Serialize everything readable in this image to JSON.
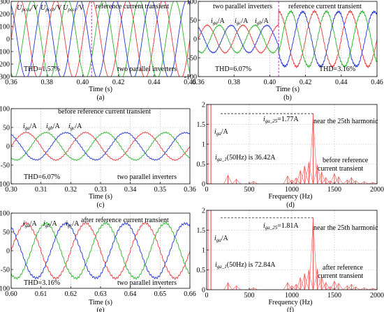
{
  "figure": {
    "panels": [
      {
        "id": "a",
        "caption": "(a)",
        "xlabel": "Time (s)",
        "thd_left": "THD=1.57%",
        "thd_right": "",
        "ann": [
          "reference current transient",
          "two parallel inverters"
        ],
        "series_names": [
          "U_pcca/V",
          "U_pccb/V",
          "U_pccc/V"
        ]
      },
      {
        "id": "b",
        "caption": "(b)",
        "xlabel": "Time (s)",
        "thd_left": "THD=6.07%",
        "thd_right": "THD=3.16%",
        "ann": [
          "two parallel inverters",
          "reference current transient"
        ],
        "series_names": [
          "i_ga/A",
          "i_gb/A",
          "i_gc/A"
        ]
      },
      {
        "id": "c",
        "caption": "(c)",
        "xlabel": "Time (s)",
        "thd_left": "THD=6.07%",
        "thd_right": "",
        "ann": [
          "before reference current transient",
          "two parallel inverters"
        ],
        "series_names": [
          "i_ga/A",
          "i_gb/A",
          "i_gc/A"
        ]
      },
      {
        "id": "d",
        "caption": "(d)",
        "xlabel": "Frequency (Hz)",
        "ann": [
          "i_ga_25=1.77A",
          "near the 25th harmonic",
          "i_ga/A",
          "i_ga_1(50Hz) is 36.42A",
          "before reference",
          "current transient"
        ]
      },
      {
        "id": "e",
        "caption": "(e)",
        "xlabel": "Time (s)",
        "thd_left": "THD=3.16%",
        "thd_right": "",
        "ann": [
          "after reference current transient",
          "two parallel inverters"
        ],
        "series_names": [
          "i_ga/A",
          "i_gb/A",
          "i_gc/A"
        ]
      },
      {
        "id": "f",
        "caption": "(f)",
        "xlabel": "Frequency (Hz)",
        "ann": [
          "i_ga_25=1.81A",
          "near the 25th harmonic",
          "i_ga/A",
          "i_ga_1(50Hz) is 72.84A",
          "after reference",
          "current transient"
        ]
      }
    ]
  },
  "chart_data": [
    {
      "panel": "a",
      "type": "line",
      "xlabel": "Time (s)",
      "xlim": [
        0.36,
        0.46
      ],
      "ylim": [
        -300,
        300
      ],
      "x_ticks": [
        0.36,
        0.38,
        0.4,
        0.42,
        0.44,
        0.46
      ],
      "y_ticks": [
        -300,
        -200,
        -100,
        0,
        100,
        200,
        300
      ],
      "frequency_hz": 50,
      "transient_t": 0.405,
      "series": [
        {
          "name": "U_pcca/V",
          "amplitude": 311,
          "phase_deg": 0,
          "color": "#e8393c"
        },
        {
          "name": "U_pccb/V",
          "amplitude": 311,
          "phase_deg": -120,
          "color": "#2ab52a"
        },
        {
          "name": "U_pccc/V",
          "amplitude": 311,
          "phase_deg": 120,
          "color": "#2233d6"
        }
      ]
    },
    {
      "panel": "b",
      "type": "line",
      "xlabel": "Time (s)",
      "xlim": [
        0.36,
        0.46
      ],
      "ylim": [
        -100,
        100
      ],
      "x_ticks": [
        0.36,
        0.38,
        0.4,
        0.42,
        0.44,
        0.46
      ],
      "y_ticks": [
        -100,
        -50,
        0,
        50,
        100
      ],
      "frequency_hz": 50,
      "transient_t": 0.405,
      "series": [
        {
          "name": "i_ga/A",
          "amp_before": 36.42,
          "amp_after": 72.84,
          "phase_deg": 0,
          "color": "#e8393c"
        },
        {
          "name": "i_gb/A",
          "amp_before": 36.42,
          "amp_after": 72.84,
          "phase_deg": -120,
          "color": "#2ab52a"
        },
        {
          "name": "i_gc/A",
          "amp_before": 36.42,
          "amp_after": 72.84,
          "phase_deg": 120,
          "color": "#2233d6"
        }
      ]
    },
    {
      "panel": "c",
      "type": "line",
      "xlabel": "Time (s)",
      "xlim": [
        0.3,
        0.36
      ],
      "ylim": [
        -100,
        100
      ],
      "x_ticks": [
        0.3,
        0.31,
        0.32,
        0.33,
        0.34,
        0.35,
        0.36
      ],
      "y_ticks": [
        -100,
        -50,
        0,
        50,
        100
      ],
      "frequency_hz": 50,
      "series": [
        {
          "name": "i_ga/A",
          "amplitude": 36.42,
          "phase_deg": 0,
          "color": "#e8393c"
        },
        {
          "name": "i_gb/A",
          "amplitude": 36.42,
          "phase_deg": -120,
          "color": "#2ab52a"
        },
        {
          "name": "i_gc/A",
          "amplitude": 36.42,
          "phase_deg": 120,
          "color": "#2233d6"
        }
      ]
    },
    {
      "panel": "d",
      "type": "bar",
      "xlabel": "Frequency (Hz)",
      "xlim": [
        0,
        2000
      ],
      "ylim": [
        0,
        2
      ],
      "x_ticks": [
        0,
        500,
        1000,
        1500,
        2000
      ],
      "y_ticks": [
        0,
        0.5,
        1,
        1.5,
        2
      ],
      "fundamental": {
        "frequency_hz": 50,
        "amplitude_A": 36.42
      },
      "harmonics": [
        [
          250,
          0.22
        ],
        [
          350,
          0.12
        ],
        [
          550,
          0.06
        ],
        [
          950,
          0.2
        ],
        [
          1000,
          0.1
        ],
        [
          1050,
          0.15
        ],
        [
          1100,
          0.34
        ],
        [
          1150,
          0.45
        ],
        [
          1200,
          0.55
        ],
        [
          1250,
          1.77
        ],
        [
          1300,
          0.48
        ],
        [
          1350,
          0.3
        ],
        [
          1400,
          0.16
        ],
        [
          1450,
          0.08
        ],
        [
          1500,
          0.26
        ],
        [
          1550,
          0.18
        ],
        [
          1650,
          0.1
        ],
        [
          1700,
          0.16
        ],
        [
          1750,
          0.08
        ],
        [
          1850,
          0.06
        ],
        [
          1950,
          0.04
        ]
      ],
      "color": "#ec5a5a"
    },
    {
      "panel": "e",
      "type": "line",
      "xlabel": "Time (s)",
      "xlim": [
        0.6,
        0.66
      ],
      "ylim": [
        -100,
        100
      ],
      "x_ticks": [
        0.6,
        0.61,
        0.62,
        0.63,
        0.64,
        0.65,
        0.66
      ],
      "y_ticks": [
        -100,
        -50,
        0,
        50,
        100
      ],
      "frequency_hz": 50,
      "series": [
        {
          "name": "i_ga/A",
          "amplitude": 72.84,
          "phase_deg": 0,
          "color": "#e8393c"
        },
        {
          "name": "i_gb/A",
          "amplitude": 72.84,
          "phase_deg": -120,
          "color": "#2ab52a"
        },
        {
          "name": "i_gc/A",
          "amplitude": 72.84,
          "phase_deg": 120,
          "color": "#2233d6"
        }
      ]
    },
    {
      "panel": "f",
      "type": "bar",
      "xlabel": "Frequency (Hz)",
      "xlim": [
        0,
        2000
      ],
      "ylim": [
        0,
        2
      ],
      "x_ticks": [
        0,
        500,
        1000,
        1500,
        2000
      ],
      "y_ticks": [
        0,
        0.5,
        1,
        1.5,
        2
      ],
      "fundamental": {
        "frequency_hz": 50,
        "amplitude_A": 72.84
      },
      "harmonics": [
        [
          250,
          0.18
        ],
        [
          350,
          0.1
        ],
        [
          550,
          0.05
        ],
        [
          950,
          0.18
        ],
        [
          1000,
          0.1
        ],
        [
          1050,
          0.14
        ],
        [
          1100,
          0.3
        ],
        [
          1150,
          0.4
        ],
        [
          1200,
          0.5
        ],
        [
          1250,
          1.81
        ],
        [
          1300,
          0.52
        ],
        [
          1350,
          0.32
        ],
        [
          1400,
          0.18
        ],
        [
          1450,
          0.08
        ],
        [
          1500,
          0.22
        ],
        [
          1550,
          0.16
        ],
        [
          1650,
          0.1
        ],
        [
          1700,
          0.14
        ],
        [
          1750,
          0.07
        ],
        [
          1850,
          0.05
        ],
        [
          1950,
          0.04
        ]
      ],
      "color": "#ec5a5a"
    }
  ]
}
